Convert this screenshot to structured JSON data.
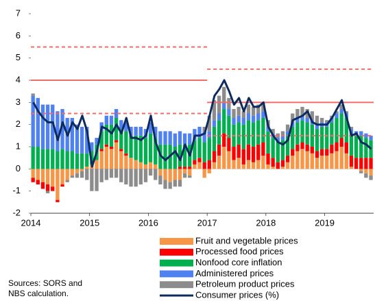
{
  "chart_data": {
    "type": "stacked-bar-line",
    "categories": [
      "2014",
      null,
      null,
      null,
      null,
      null,
      null,
      null,
      null,
      null,
      null,
      null,
      "2015",
      null,
      null,
      null,
      null,
      null,
      null,
      null,
      null,
      null,
      null,
      null,
      "2016",
      null,
      null,
      null,
      null,
      null,
      null,
      null,
      null,
      null,
      null,
      null,
      "2017",
      null,
      null,
      null,
      null,
      null,
      null,
      null,
      null,
      null,
      null,
      null,
      "2018",
      null,
      null,
      null,
      null,
      null,
      null,
      null,
      null,
      null,
      null,
      null,
      "2019",
      null,
      null,
      null,
      null,
      null,
      null,
      null,
      null,
      null
    ],
    "series": [
      {
        "name": "Fruit and vegetable prices",
        "color": "#f79646",
        "values": [
          -0.4,
          -0.5,
          -0.6,
          -0.7,
          -0.8,
          -1.4,
          -0.7,
          -0.5,
          -0.3,
          -0.2,
          -0.1,
          0.1,
          0.2,
          0.4,
          0.8,
          1.0,
          0.9,
          1.2,
          0.8,
          0.6,
          0.5,
          0.4,
          0.3,
          0.2,
          0.3,
          0.2,
          -0.3,
          -0.5,
          -0.6,
          -0.5,
          -0.5,
          -0.2,
          -0.3,
          0.2,
          0.3,
          -0.4,
          -0.2,
          0.3,
          0.6,
          1.0,
          0.8,
          0.4,
          0.5,
          0.2,
          0.4,
          0.3,
          0.4,
          0.6,
          0.2,
          0.1,
          0.0,
          0.1,
          0.3,
          0.6,
          0.8,
          0.9,
          0.8,
          0.7,
          0.5,
          0.6,
          0.6,
          0.7,
          0.8,
          1.0,
          0.7,
          0.1,
          0.0,
          -0.1,
          -0.2,
          -0.3
        ]
      },
      {
        "name": "Processed food prices",
        "color": "#ff0000",
        "values": [
          -0.2,
          -0.2,
          -0.3,
          -0.3,
          -0.2,
          -0.1,
          -0.1,
          0.0,
          0.0,
          0.0,
          0.0,
          0.0,
          0.0,
          0.0,
          0.1,
          0.1,
          0.1,
          0.1,
          0.1,
          0.1,
          0.0,
          0.0,
          0.0,
          0.0,
          0.0,
          0.0,
          0.0,
          0.0,
          0.0,
          0.0,
          0.1,
          0.1,
          0.1,
          0.2,
          0.2,
          0.3,
          0.4,
          0.5,
          0.5,
          0.6,
          0.6,
          0.6,
          0.6,
          0.7,
          0.7,
          0.7,
          0.7,
          0.6,
          0.5,
          0.4,
          0.3,
          0.3,
          0.3,
          0.3,
          0.3,
          0.3,
          0.3,
          0.3,
          0.3,
          0.3,
          0.3,
          0.4,
          0.4,
          0.4,
          0.5,
          0.5,
          0.5,
          0.5,
          0.5,
          0.5
        ]
      },
      {
        "name": "Nonfood core inflation",
        "color": "#00b050",
        "values": [
          1.0,
          1.0,
          0.9,
          0.9,
          0.9,
          0.8,
          0.9,
          0.8,
          0.8,
          0.7,
          0.7,
          0.6,
          0.6,
          0.7,
          0.8,
          0.9,
          1.0,
          1.0,
          0.9,
          1.0,
          1.0,
          1.1,
          1.2,
          1.2,
          1.3,
          1.2,
          1.1,
          1.1,
          1.1,
          1.0,
          1.0,
          1.0,
          1.0,
          0.9,
          0.9,
          0.9,
          1.0,
          1.1,
          1.1,
          1.1,
          1.0,
          1.0,
          1.0,
          1.1,
          1.1,
          1.1,
          1.1,
          1.1,
          1.0,
          0.9,
          0.9,
          0.9,
          0.9,
          1.0,
          1.0,
          1.0,
          1.0,
          1.0,
          1.0,
          1.0,
          1.0,
          1.0,
          1.1,
          1.1,
          1.1,
          1.0,
          1.0,
          1.0,
          0.9,
          0.8
        ]
      },
      {
        "name": "Administered prices",
        "color": "#4f81f0",
        "values": [
          2.3,
          2.2,
          2.0,
          2.0,
          2.0,
          1.8,
          1.8,
          1.5,
          1.5,
          1.3,
          1.2,
          1.2,
          0.4,
          0.3,
          0.4,
          0.4,
          0.4,
          0.4,
          0.4,
          0.4,
          0.4,
          0.4,
          0.4,
          0.4,
          0.5,
          0.5,
          0.6,
          0.6,
          0.6,
          0.6,
          0.6,
          0.5,
          0.5,
          0.5,
          0.5,
          0.5,
          0.3,
          0.3,
          0.3,
          0.3,
          0.3,
          0.3,
          0.3,
          0.3,
          0.3,
          0.3,
          0.3,
          0.3,
          0.2,
          0.2,
          0.2,
          0.2,
          0.2,
          0.2,
          0.2,
          0.2,
          0.2,
          0.2,
          0.2,
          0.2,
          0.2,
          0.2,
          0.2,
          0.2,
          0.2,
          0.2,
          0.2,
          0.2,
          0.2,
          0.2
        ]
      },
      {
        "name": "Petroleum product prices",
        "color": "#8c8c8c",
        "values": [
          0.1,
          0.0,
          0.0,
          -0.1,
          0.0,
          0.0,
          0.0,
          -0.1,
          -0.1,
          -0.2,
          -0.3,
          -0.5,
          -1.0,
          -1.0,
          -0.6,
          -0.5,
          -0.4,
          -0.4,
          -0.6,
          -0.7,
          -0.8,
          -0.8,
          -0.7,
          -0.6,
          -0.3,
          -0.5,
          -0.4,
          -0.4,
          -0.3,
          -0.3,
          -0.3,
          -0.2,
          -0.1,
          0.0,
          0.0,
          0.2,
          0.7,
          0.9,
          0.8,
          0.7,
          0.5,
          0.4,
          0.4,
          0.3,
          0.4,
          0.4,
          0.4,
          0.4,
          0.3,
          0.2,
          0.2,
          0.2,
          0.3,
          0.4,
          0.4,
          0.4,
          0.4,
          0.4,
          0.4,
          0.2,
          0.1,
          0.1,
          0.1,
          0.2,
          0.1,
          0.1,
          0.0,
          -0.1,
          -0.2,
          -0.2
        ]
      },
      {
        "name": "Consumer prices (%)",
        "color": "#0d2b5e",
        "kind": "line",
        "values": [
          3.0,
          2.6,
          2.3,
          2.1,
          2.1,
          1.3,
          2.1,
          1.5,
          2.1,
          1.8,
          2.4,
          1.7,
          0.1,
          0.8,
          1.9,
          1.8,
          1.6,
          2.0,
          1.6,
          2.3,
          1.4,
          1.4,
          1.3,
          1.5,
          2.4,
          1.2,
          0.6,
          0.4,
          0.6,
          0.8,
          0.4,
          1.1,
          0.6,
          1.5,
          1.5,
          1.6,
          2.4,
          3.3,
          3.6,
          4.0,
          3.5,
          2.9,
          3.2,
          2.6,
          3.2,
          2.8,
          2.8,
          3.0,
          1.9,
          1.5,
          1.2,
          1.1,
          1.3,
          2.2,
          2.3,
          2.4,
          2.6,
          2.1,
          2.0,
          2.0,
          2.0,
          2.3,
          2.7,
          3.1,
          2.3,
          1.5,
          1.6,
          1.2,
          1.1,
          0.9
        ]
      }
    ],
    "targets": [
      {
        "from": 0,
        "to": 35,
        "value": 4,
        "low": 2.5,
        "high": 5.5,
        "color": "#f26b6b"
      },
      {
        "from": 36,
        "to": 69,
        "value": 3,
        "low": 1.5,
        "high": 4.5,
        "color": "#f26b6b"
      }
    ],
    "ylim": [
      -2,
      7
    ],
    "yticks": [
      -2,
      -1,
      0,
      1,
      2,
      3,
      4,
      5,
      6,
      7
    ],
    "sources": [
      "Sources: SORS and",
      "NBS calculation."
    ]
  }
}
